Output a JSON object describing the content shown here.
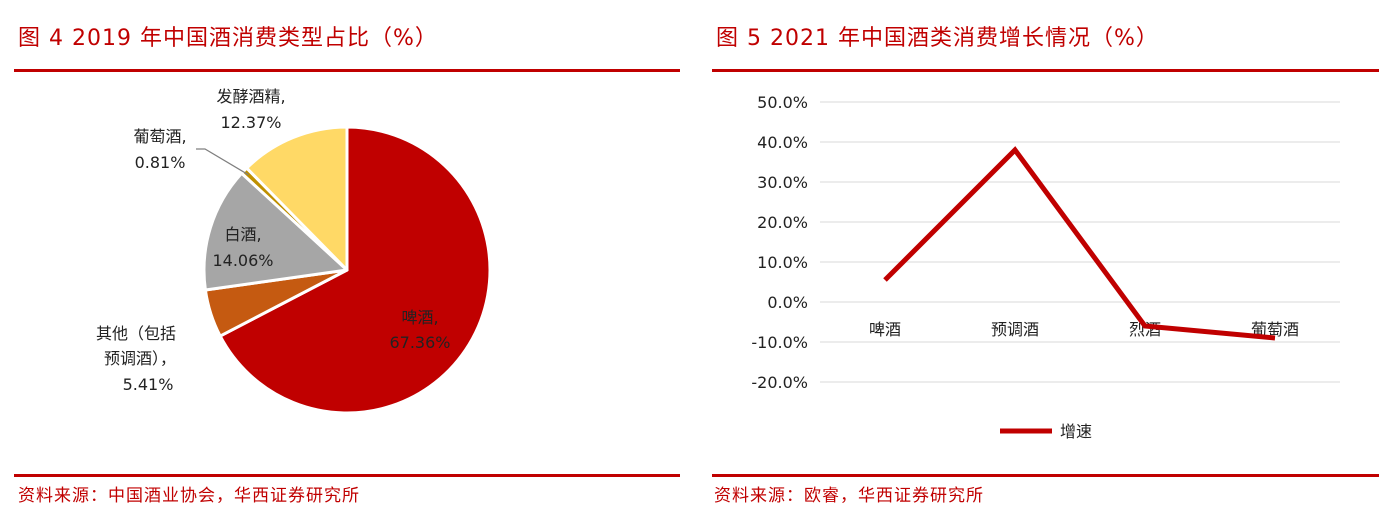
{
  "left": {
    "title": "图 4   2019 年中国酒消费类型占比（%）",
    "source": "资料来源：中国酒业协会，华西证券研究所"
  },
  "right": {
    "title": "图 5   2021 年中国酒类消费增长情况（%）",
    "source": "资料来源：欧睿，华西证券研究所"
  },
  "colors": {
    "accent": "#c00000",
    "beer": "#c00000",
    "other": "#c55a11",
    "baijiu": "#a6a6a6",
    "wine": "#bf9000",
    "spirits": "#ffd966",
    "line": "#c00000"
  },
  "chart_data": [
    {
      "type": "pie",
      "title": "2019 年中国酒消费类型占比（%）",
      "slices": [
        {
          "name": "啤酒,",
          "value": 67.36,
          "label": "67.36%"
        },
        {
          "name": "其他（包括预调酒）,",
          "value": 5.41,
          "label": "5.41%",
          "name_lines": [
            "其他（包括",
            "预调酒），"
          ]
        },
        {
          "name": "白酒,",
          "value": 14.06,
          "label": "14.06%"
        },
        {
          "name": "葡萄酒,",
          "value": 0.81,
          "label": "0.81%"
        },
        {
          "name": "发酵酒精,",
          "value": 12.37,
          "label": "12.37%"
        }
      ]
    },
    {
      "type": "line",
      "title": "2021 年中国酒类消费增长情况（%）",
      "categories": [
        "啤酒",
        "预调酒",
        "烈酒",
        "葡萄酒"
      ],
      "series": [
        {
          "name": "增速",
          "values": [
            5.5,
            38.0,
            -6.0,
            -9.0
          ]
        }
      ],
      "ylim": [
        -20,
        50
      ],
      "yticks": [
        "50.0%",
        "40.0%",
        "30.0%",
        "20.0%",
        "10.0%",
        "0.0%",
        "-10.0%",
        "-20.0%"
      ],
      "ytick_values": [
        50,
        40,
        30,
        20,
        10,
        0,
        -10,
        -20
      ],
      "grid": true,
      "legend": "bottom"
    }
  ]
}
